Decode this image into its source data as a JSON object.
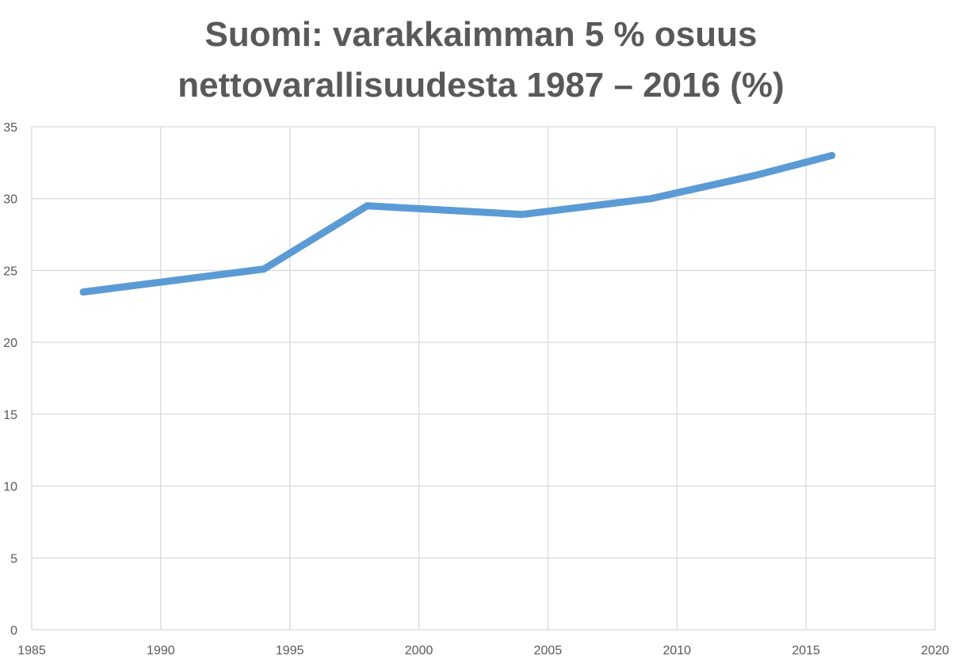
{
  "chart_data": {
    "type": "line",
    "title_lines": [
      "Suomi: varakkaimman 5 % osuus",
      "nettovarallisuudesta 1987 – 2016 (%)"
    ],
    "xlabel": "",
    "ylabel": "",
    "xlim": [
      1985,
      2020
    ],
    "ylim": [
      0,
      35
    ],
    "x_ticks": [
      1985,
      1990,
      1995,
      2000,
      2005,
      2010,
      2015,
      2020
    ],
    "y_ticks": [
      0,
      5,
      10,
      15,
      20,
      25,
      30,
      35
    ],
    "grid": true,
    "legend": "none",
    "series": [
      {
        "color": "#5b9bd5",
        "x": [
          1987,
          1994,
          1998,
          2004,
          2009,
          2013,
          2016
        ],
        "y": [
          23.5,
          25.1,
          29.5,
          28.9,
          30.0,
          31.6,
          33.0
        ]
      }
    ]
  }
}
